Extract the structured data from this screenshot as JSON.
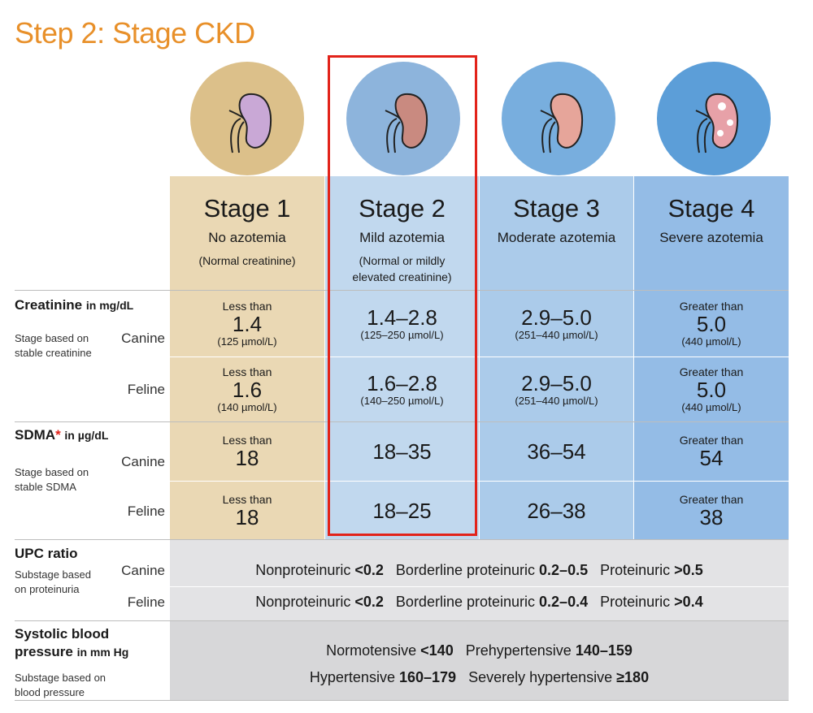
{
  "title": "Step 2: Stage CKD",
  "stages": [
    {
      "stage": "Stage 1",
      "sub": "No azotemia",
      "note": "(Normal creatinine)"
    },
    {
      "stage": "Stage 2",
      "sub": "Mild azotemia",
      "note": "(Normal or mildly elevated creatinine)"
    },
    {
      "stage": "Stage 3",
      "sub": "Moderate azotemia",
      "note": ""
    },
    {
      "stage": "Stage 4",
      "sub": "Severe azotemia",
      "note": ""
    }
  ],
  "creatinine": {
    "label": "Creatinine",
    "unit": "in mg/dL",
    "note": "Stage based on stable creatinine",
    "canine_label": "Canine",
    "feline_label": "Feline",
    "canine": [
      {
        "pre": "Less than",
        "big": "1.4",
        "unit": "(125 µmol/L)"
      },
      {
        "pre": "",
        "big": "1.4–2.8",
        "unit": "(125–250 µmol/L)"
      },
      {
        "pre": "",
        "big": "2.9–5.0",
        "unit": "(251–440 µmol/L)"
      },
      {
        "pre": "Greater than",
        "big": "5.0",
        "unit": "(440 µmol/L)"
      }
    ],
    "feline": [
      {
        "pre": "Less than",
        "big": "1.6",
        "unit": "(140 µmol/L)"
      },
      {
        "pre": "",
        "big": "1.6–2.8",
        "unit": "(140–250 µmol/L)"
      },
      {
        "pre": "",
        "big": "2.9–5.0",
        "unit": "(251–440 µmol/L)"
      },
      {
        "pre": "Greater than",
        "big": "5.0",
        "unit": "(440 µmol/L)"
      }
    ]
  },
  "sdma": {
    "label": "SDMA",
    "star": "*",
    "unit": "in µg/dL",
    "note": "Stage based on stable SDMA",
    "canine_label": "Canine",
    "feline_label": "Feline",
    "canine": [
      {
        "pre": "Less than",
        "big": "18"
      },
      {
        "pre": "",
        "big": "18–35"
      },
      {
        "pre": "",
        "big": "36–54"
      },
      {
        "pre": "Greater than",
        "big": "54"
      }
    ],
    "feline": [
      {
        "pre": "Less than",
        "big": "18"
      },
      {
        "pre": "",
        "big": "18–25"
      },
      {
        "pre": "",
        "big": "26–38"
      },
      {
        "pre": "Greater than",
        "big": "38"
      }
    ]
  },
  "upc": {
    "label": "UPC ratio",
    "note": "Substage based on proteinuria",
    "canine_label": "Canine",
    "feline_label": "Feline",
    "canine": {
      "t1": "Nonproteinuric",
      "v1": "<0.2",
      "t2": "Borderline proteinuric",
      "v2": "0.2–0.5",
      "t3": "Proteinuric",
      "v3": ">0.5"
    },
    "feline": {
      "t1": "Nonproteinuric",
      "v1": "<0.2",
      "t2": "Borderline proteinuric",
      "v2": "0.2–0.4",
      "t3": "Proteinuric",
      "v3": ">0.4"
    }
  },
  "bp": {
    "label_line1": "Systolic blood",
    "label_line2": "pressure",
    "unit": "in mm Hg",
    "note": "Substage based on blood pressure",
    "line1": {
      "t1": "Normotensive",
      "v1": "<140",
      "t2": "Prehypertensive",
      "v2": "140–159"
    },
    "line2": {
      "t1": "Hypertensive",
      "v1": "160–179",
      "t2": "Severely hypertensive",
      "v2": "≥180"
    }
  },
  "colors": {
    "title": "#e8902a",
    "stage1": "#ead8b4",
    "stage2": "#c1d8ee",
    "stage3": "#abcbea",
    "stage4": "#94bce6",
    "highlight": "#e2231a"
  }
}
